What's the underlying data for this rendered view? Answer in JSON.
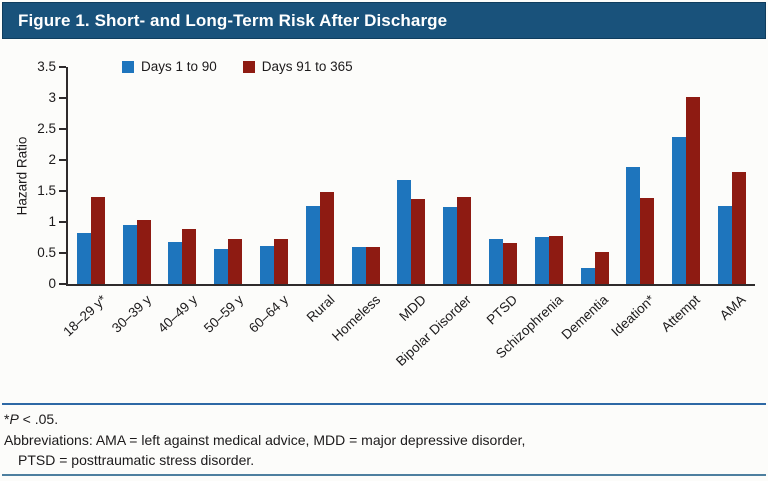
{
  "chart_data": {
    "type": "bar",
    "title": "Figure 1. Short- and Long-Term Risk After Discharge",
    "xlabel": "",
    "ylabel": "Hazard Ratio",
    "ylim": [
      0,
      3.5
    ],
    "yticks": [
      3.5,
      3,
      2.5,
      2,
      1.5,
      1,
      0.5,
      0
    ],
    "grid": false,
    "legend_position": "top-left-inside",
    "categories": [
      "18–29 y*",
      "30–39 y",
      "40–49 y",
      "50–59 y",
      "60–64 y",
      "Rural",
      "Homeless",
      "MDD",
      "Bipolar Disorder",
      "PTSD",
      "Schizophrenia",
      "Dementia",
      "Ideation*",
      "Attempt",
      "AMA"
    ],
    "series": [
      {
        "name": "Days 1 to 90",
        "color": "#1e75bd",
        "values": [
          0.83,
          0.95,
          0.67,
          0.57,
          0.62,
          1.25,
          0.6,
          1.67,
          1.24,
          0.72,
          0.75,
          0.25,
          1.89,
          2.37,
          1.26
        ]
      },
      {
        "name": "Days 91 to 365",
        "color": "#8e1b12",
        "values": [
          1.4,
          1.04,
          0.88,
          0.72,
          0.72,
          1.48,
          0.6,
          1.37,
          1.4,
          0.66,
          0.77,
          0.52,
          1.38,
          3.02,
          1.8
        ]
      }
    ]
  },
  "footer": {
    "footnote_star": "*",
    "footnote_p": "P",
    "footnote_rest": " < .05.",
    "abbreviations_line1": "Abbreviations: AMA = left against medical advice, MDD = major depressive disorder,",
    "abbreviations_line2": "PTSD = posttraumatic stress disorder."
  },
  "colors": {
    "header_bg": "#19527b",
    "header_border": "#0f3d5e",
    "header_text": "#ffffff",
    "axis": "#2e2b2c",
    "text": "#1c1a1b",
    "sep_top": "#2d68a5",
    "sep_bottom": "#4d7f9f"
  }
}
